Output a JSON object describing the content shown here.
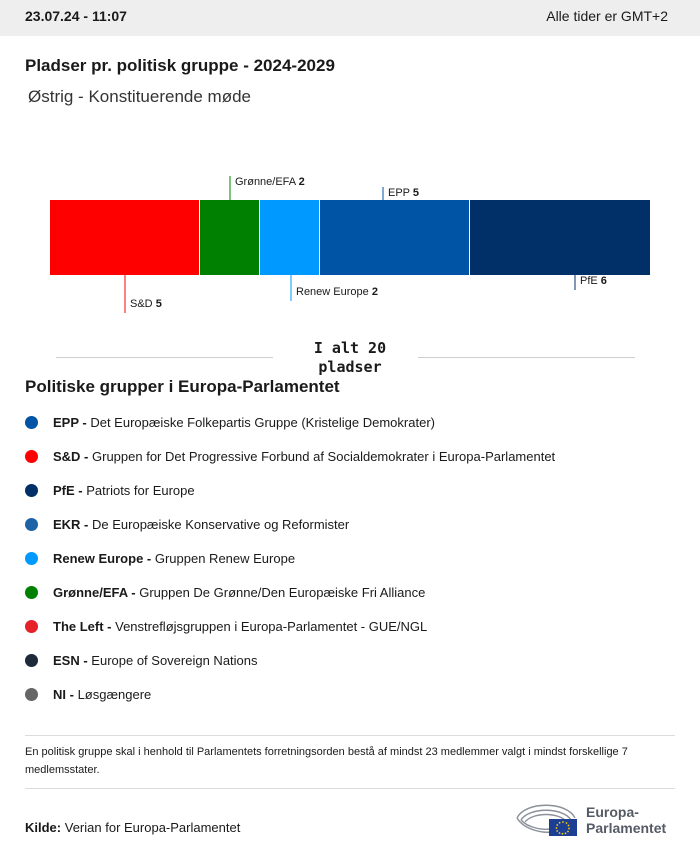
{
  "header": {
    "datetime": "23.07.24 - 11:07",
    "timezone": "Alle tider er GMT+2"
  },
  "title": "Pladser pr. politisk gruppe - 2024-2029",
  "subtitle": "Østrig - Konstituerende møde",
  "chart_data": {
    "type": "bar",
    "orientation": "stacked-horizontal",
    "title": "Pladser pr. politisk gruppe - 2024-2029",
    "subtitle": "Østrig - Konstituerende møde",
    "xlabel": "",
    "ylabel": "",
    "categories": [
      "S&D",
      "Grønne/EFA",
      "Renew Europe",
      "EPP",
      "PfE"
    ],
    "values": [
      5,
      2,
      2,
      5,
      6
    ],
    "colors": [
      "#ff0000",
      "#008000",
      "#0099ff",
      "#0054a5",
      "#003067"
    ],
    "label_side": [
      "bottom",
      "top",
      "bottom",
      "top",
      "bottom"
    ],
    "xlim": [
      0,
      20
    ],
    "grid": false,
    "total_label": "I alt 20 pladser"
  },
  "legend": {
    "title": "Politiske grupper i Europa-Parlamentet",
    "items": [
      {
        "abbr": "EPP -",
        "name": "Det Europæiske Folkepartis Gruppe (Kristelige Demokrater)",
        "color": "#0054a5"
      },
      {
        "abbr": "S&D -",
        "name": "Gruppen for Det Progressive Forbund af Socialdemokrater i Europa-Parlamentet",
        "color": "#ff0000"
      },
      {
        "abbr": "PfE -",
        "name": "Patriots for Europe",
        "color": "#003067"
      },
      {
        "abbr": "EKR -",
        "name": "De Europæiske Konservative og Reformister",
        "color": "#1e63a6"
      },
      {
        "abbr": "Renew Europe -",
        "name": "Gruppen Renew Europe",
        "color": "#0099ff"
      },
      {
        "abbr": "Grønne/EFA -",
        "name": "Gruppen De Grønne/Den Europæiske Fri Alliance",
        "color": "#008000"
      },
      {
        "abbr": "The Left -",
        "name": "Venstrefløjsgruppen i Europa-Parlamentet - GUE/NGL",
        "color": "#e62129"
      },
      {
        "abbr": "ESN -",
        "name": "Europe of Sovereign Nations",
        "color": "#1c2a3a"
      },
      {
        "abbr": "NI -",
        "name": "Løsgængere",
        "color": "#666666"
      }
    ]
  },
  "note": "En politisk gruppe skal i henhold til Parlamentets forretningsorden bestå af mindst 23 medlemmer valgt i mindst forskellige 7 medlemsstater.",
  "source": {
    "label": "Kilde:",
    "text": "Verian for Europa-Parlamentet"
  },
  "logo": {
    "line1": "Europa-",
    "line2": "Parlamentet",
    "icon": "european-parliament-logo-icon"
  }
}
